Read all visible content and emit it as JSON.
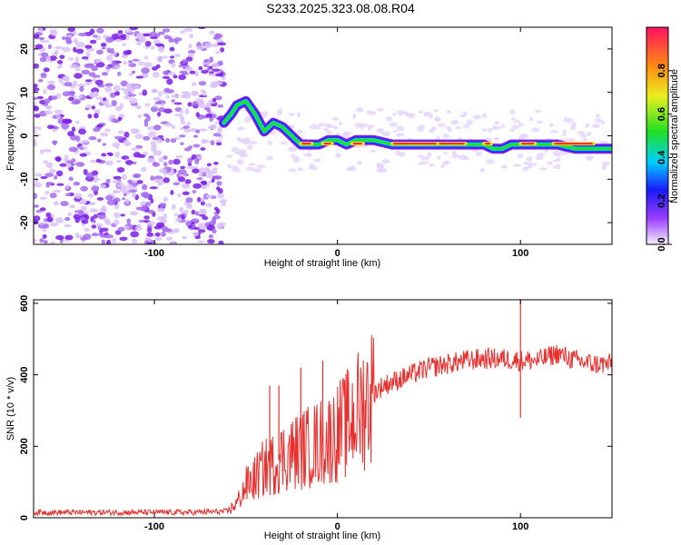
{
  "title": "S233.2025.323.08.08.R04",
  "chart_data": [
    {
      "type": "heatmap",
      "xlabel": "Height of straight line (km)",
      "ylabel": "Frequency (Hz)",
      "xlim": [
        -166,
        150
      ],
      "ylim": [
        -25,
        25
      ],
      "x_ticks": [
        -100,
        0,
        100
      ],
      "x_tick_labels": [
        "-100",
        "0",
        "100"
      ],
      "y_ticks": [
        -20,
        -10,
        0,
        10,
        20
      ],
      "y_tick_labels": [
        "-20",
        "-10",
        "0",
        "10",
        "20"
      ],
      "colorbar": {
        "label": "Normalized spectral amplitude",
        "range": [
          0,
          1
        ],
        "ticks": [
          0.0,
          0.2,
          0.4,
          0.6,
          0.8
        ],
        "tick_labels": [
          "0.0",
          "0.2",
          "0.4",
          "0.6",
          "0.8"
        ]
      },
      "ridge": {
        "x": [
          -62,
          -58,
          -55,
          -50,
          -45,
          -40,
          -35,
          -30,
          -25,
          -20,
          -15,
          -10,
          -5,
          0,
          5,
          10,
          20,
          30,
          40,
          50,
          60,
          70,
          80,
          85,
          90,
          95,
          100,
          110,
          120,
          130,
          140,
          150
        ],
        "y": [
          3,
          5,
          7,
          8,
          5,
          1,
          3,
          2,
          0,
          -2,
          -2,
          -2,
          -1,
          -1,
          -2,
          -1,
          -1,
          -2,
          -2,
          -2,
          -2,
          -2,
          -2,
          -3,
          -3,
          -2,
          -2,
          -2,
          -2,
          -3,
          -3,
          -3
        ]
      }
    },
    {
      "type": "line",
      "xlabel": "Height of straight line (km)",
      "ylabel": "SNR (10 * v/v)",
      "xlim": [
        -166,
        150
      ],
      "ylim": [
        0,
        610
      ],
      "x_ticks": [
        -100,
        0,
        100
      ],
      "x_tick_labels": [
        "-100",
        "0",
        "100"
      ],
      "y_ticks": [
        0,
        200,
        400,
        600
      ],
      "y_tick_labels": [
        "0",
        "200",
        "400",
        "600"
      ],
      "series": [
        {
          "name": "SNR",
          "color": "#e8302f",
          "x": [
            -166,
            -120,
            -80,
            -60,
            -55,
            -50,
            -45,
            -40,
            -35,
            -30,
            -25,
            -20,
            -15,
            -10,
            -5,
            0,
            5,
            10,
            15,
            20,
            25,
            30,
            40,
            50,
            60,
            70,
            80,
            90,
            100,
            110,
            120,
            130,
            140,
            150
          ],
          "y": [
            15,
            15,
            15,
            18,
            40,
            90,
            110,
            140,
            150,
            170,
            180,
            190,
            200,
            210,
            220,
            240,
            260,
            290,
            320,
            350,
            370,
            380,
            400,
            420,
            430,
            440,
            445,
            445,
            440,
            440,
            460,
            440,
            430,
            430
          ]
        }
      ],
      "spikes": [
        {
          "x": 100,
          "y": 610
        },
        {
          "x": 100,
          "y": 280
        },
        {
          "x": -8,
          "y": 440
        },
        {
          "x": -20,
          "y": 420
        },
        {
          "x": -32,
          "y": 370
        },
        {
          "x": -37,
          "y": 370
        }
      ]
    }
  ]
}
